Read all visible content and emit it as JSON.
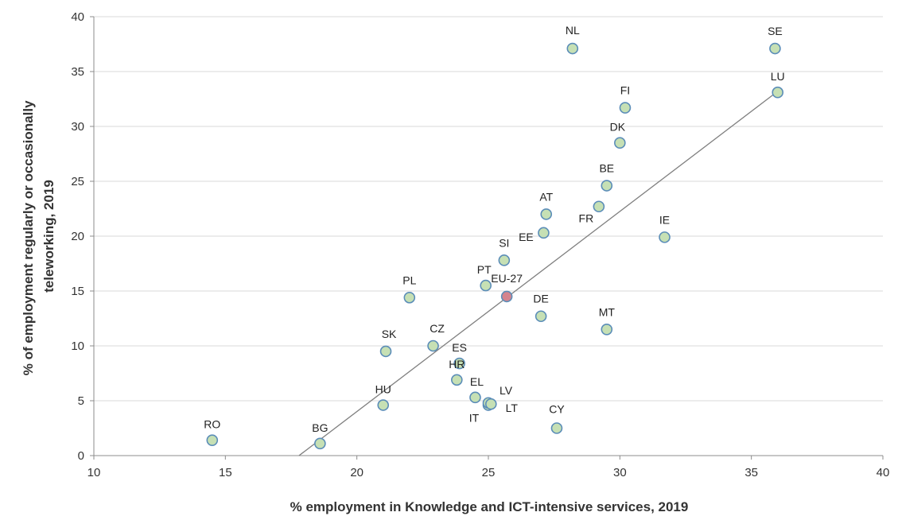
{
  "chart_data": {
    "type": "scatter",
    "title": "",
    "xlabel": "% employment in Knowledge and ICT-intensive services, 2019",
    "ylabel_lines": [
      "% of employment regularly or occasionally",
      "teleworking, 2019"
    ],
    "xlim": [
      10,
      40
    ],
    "ylim": [
      0,
      40
    ],
    "xticks": [
      10,
      15,
      20,
      25,
      30,
      35,
      40
    ],
    "yticks": [
      0,
      5,
      10,
      15,
      20,
      25,
      30,
      35,
      40
    ],
    "grid": "horizontal",
    "legend": "none",
    "point_color": "#c6e0b4",
    "point_edge_color": "#5b8db8",
    "highlight_color": "#d4848e",
    "trendline_color": "#7f7f7f",
    "trendline": {
      "x": [
        17.8,
        36.0
      ],
      "y": [
        0,
        33.2
      ]
    },
    "points": [
      {
        "label": "RO",
        "x": 14.5,
        "y": 1.4
      },
      {
        "label": "BG",
        "x": 18.6,
        "y": 1.1
      },
      {
        "label": "HU",
        "x": 21.0,
        "y": 4.6
      },
      {
        "label": "SK",
        "x": 21.1,
        "y": 9.5
      },
      {
        "label": "PL",
        "x": 22.0,
        "y": 14.4
      },
      {
        "label": "CZ",
        "x": 22.9,
        "y": 10.0
      },
      {
        "label": "ES",
        "x": 23.9,
        "y": 8.4
      },
      {
        "label": "HR",
        "x": 23.8,
        "y": 6.9
      },
      {
        "label": "EL",
        "x": 24.5,
        "y": 5.3
      },
      {
        "label": "IT",
        "x": 25.0,
        "y": 4.6
      },
      {
        "label": "LV",
        "x": 25.0,
        "y": 4.8
      },
      {
        "label": "LT",
        "x": 25.1,
        "y": 4.7
      },
      {
        "label": "PT",
        "x": 24.9,
        "y": 15.5
      },
      {
        "label": "EU-27",
        "x": 25.7,
        "y": 14.5,
        "highlight": true
      },
      {
        "label": "SI",
        "x": 25.6,
        "y": 17.8
      },
      {
        "label": "DE",
        "x": 27.0,
        "y": 12.7
      },
      {
        "label": "EE",
        "x": 27.1,
        "y": 20.3
      },
      {
        "label": "AT",
        "x": 27.2,
        "y": 22.0
      },
      {
        "label": "CY",
        "x": 27.6,
        "y": 2.5
      },
      {
        "label": "NL",
        "x": 28.2,
        "y": 37.1
      },
      {
        "label": "FR",
        "x": 29.2,
        "y": 22.7
      },
      {
        "label": "BE",
        "x": 29.5,
        "y": 24.6
      },
      {
        "label": "MT",
        "x": 29.5,
        "y": 11.5
      },
      {
        "label": "DK",
        "x": 30.0,
        "y": 28.5
      },
      {
        "label": "FI",
        "x": 30.2,
        "y": 31.7
      },
      {
        "label": "IE",
        "x": 31.7,
        "y": 19.9
      },
      {
        "label": "SE",
        "x": 35.9,
        "y": 37.1
      },
      {
        "label": "LU",
        "x": 36.0,
        "y": 33.1
      }
    ]
  }
}
